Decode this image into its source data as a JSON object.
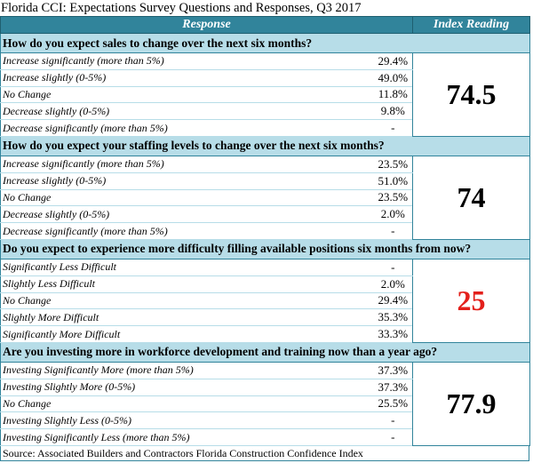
{
  "title": "Florida CCI: Expectations Survey Questions and Responses, Q3 2017",
  "header": [
    "Response",
    "Index Reading"
  ],
  "sections": [
    {
      "question": "How do you expect sales to change over the next six months?",
      "index": "74.5",
      "index_color": "#000000",
      "rows": [
        [
          "Increase significantly (more than 5%)",
          "29.4%"
        ],
        [
          "Increase slightly (0-5%)",
          "49.0%"
        ],
        [
          "No Change",
          "11.8%"
        ],
        [
          "Decrease slightly (0-5%)",
          "9.8%"
        ],
        [
          "Decrease significantly (more than 5%)",
          "-"
        ]
      ]
    },
    {
      "question": "How do you expect your staffing levels to change over the next six months?",
      "index": "74",
      "index_color": "#000000",
      "rows": [
        [
          "Increase significantly (more than 5%)",
          "23.5%"
        ],
        [
          "Increase slightly (0-5%)",
          "51.0%"
        ],
        [
          "No Change",
          "23.5%"
        ],
        [
          "Decrease slightly (0-5%)",
          "2.0%"
        ],
        [
          "Decrease significantly (more than 5%)",
          "-"
        ]
      ]
    },
    {
      "question": "Do you expect to experience more difficulty filling available positions six months from now?",
      "index": "25",
      "index_color": "#e3201b",
      "rows": [
        [
          "Significantly Less Difficult",
          "-"
        ],
        [
          "Slightly Less Difficult",
          "2.0%"
        ],
        [
          "No Change",
          "29.4%"
        ],
        [
          "Slightly More Difficult",
          "35.3%"
        ],
        [
          "Significantly More Difficult",
          "33.3%"
        ]
      ]
    },
    {
      "question": "Are you investing more in workforce development and training now than a year ago?",
      "index": "77.9",
      "index_color": "#000000",
      "rows": [
        [
          "Investing Significantly More (more than 5%)",
          "37.3%"
        ],
        [
          "Investing Slightly More (0-5%)",
          "37.3%"
        ],
        [
          "No Change",
          "25.5%"
        ],
        [
          "Investing Slightly Less (0-5%)",
          "-"
        ],
        [
          "Investing Significantly Less (more than 5%)",
          "-"
        ]
      ]
    }
  ],
  "source": "Source: Associated Builders and Contractors Florida Construction Confidence Index"
}
